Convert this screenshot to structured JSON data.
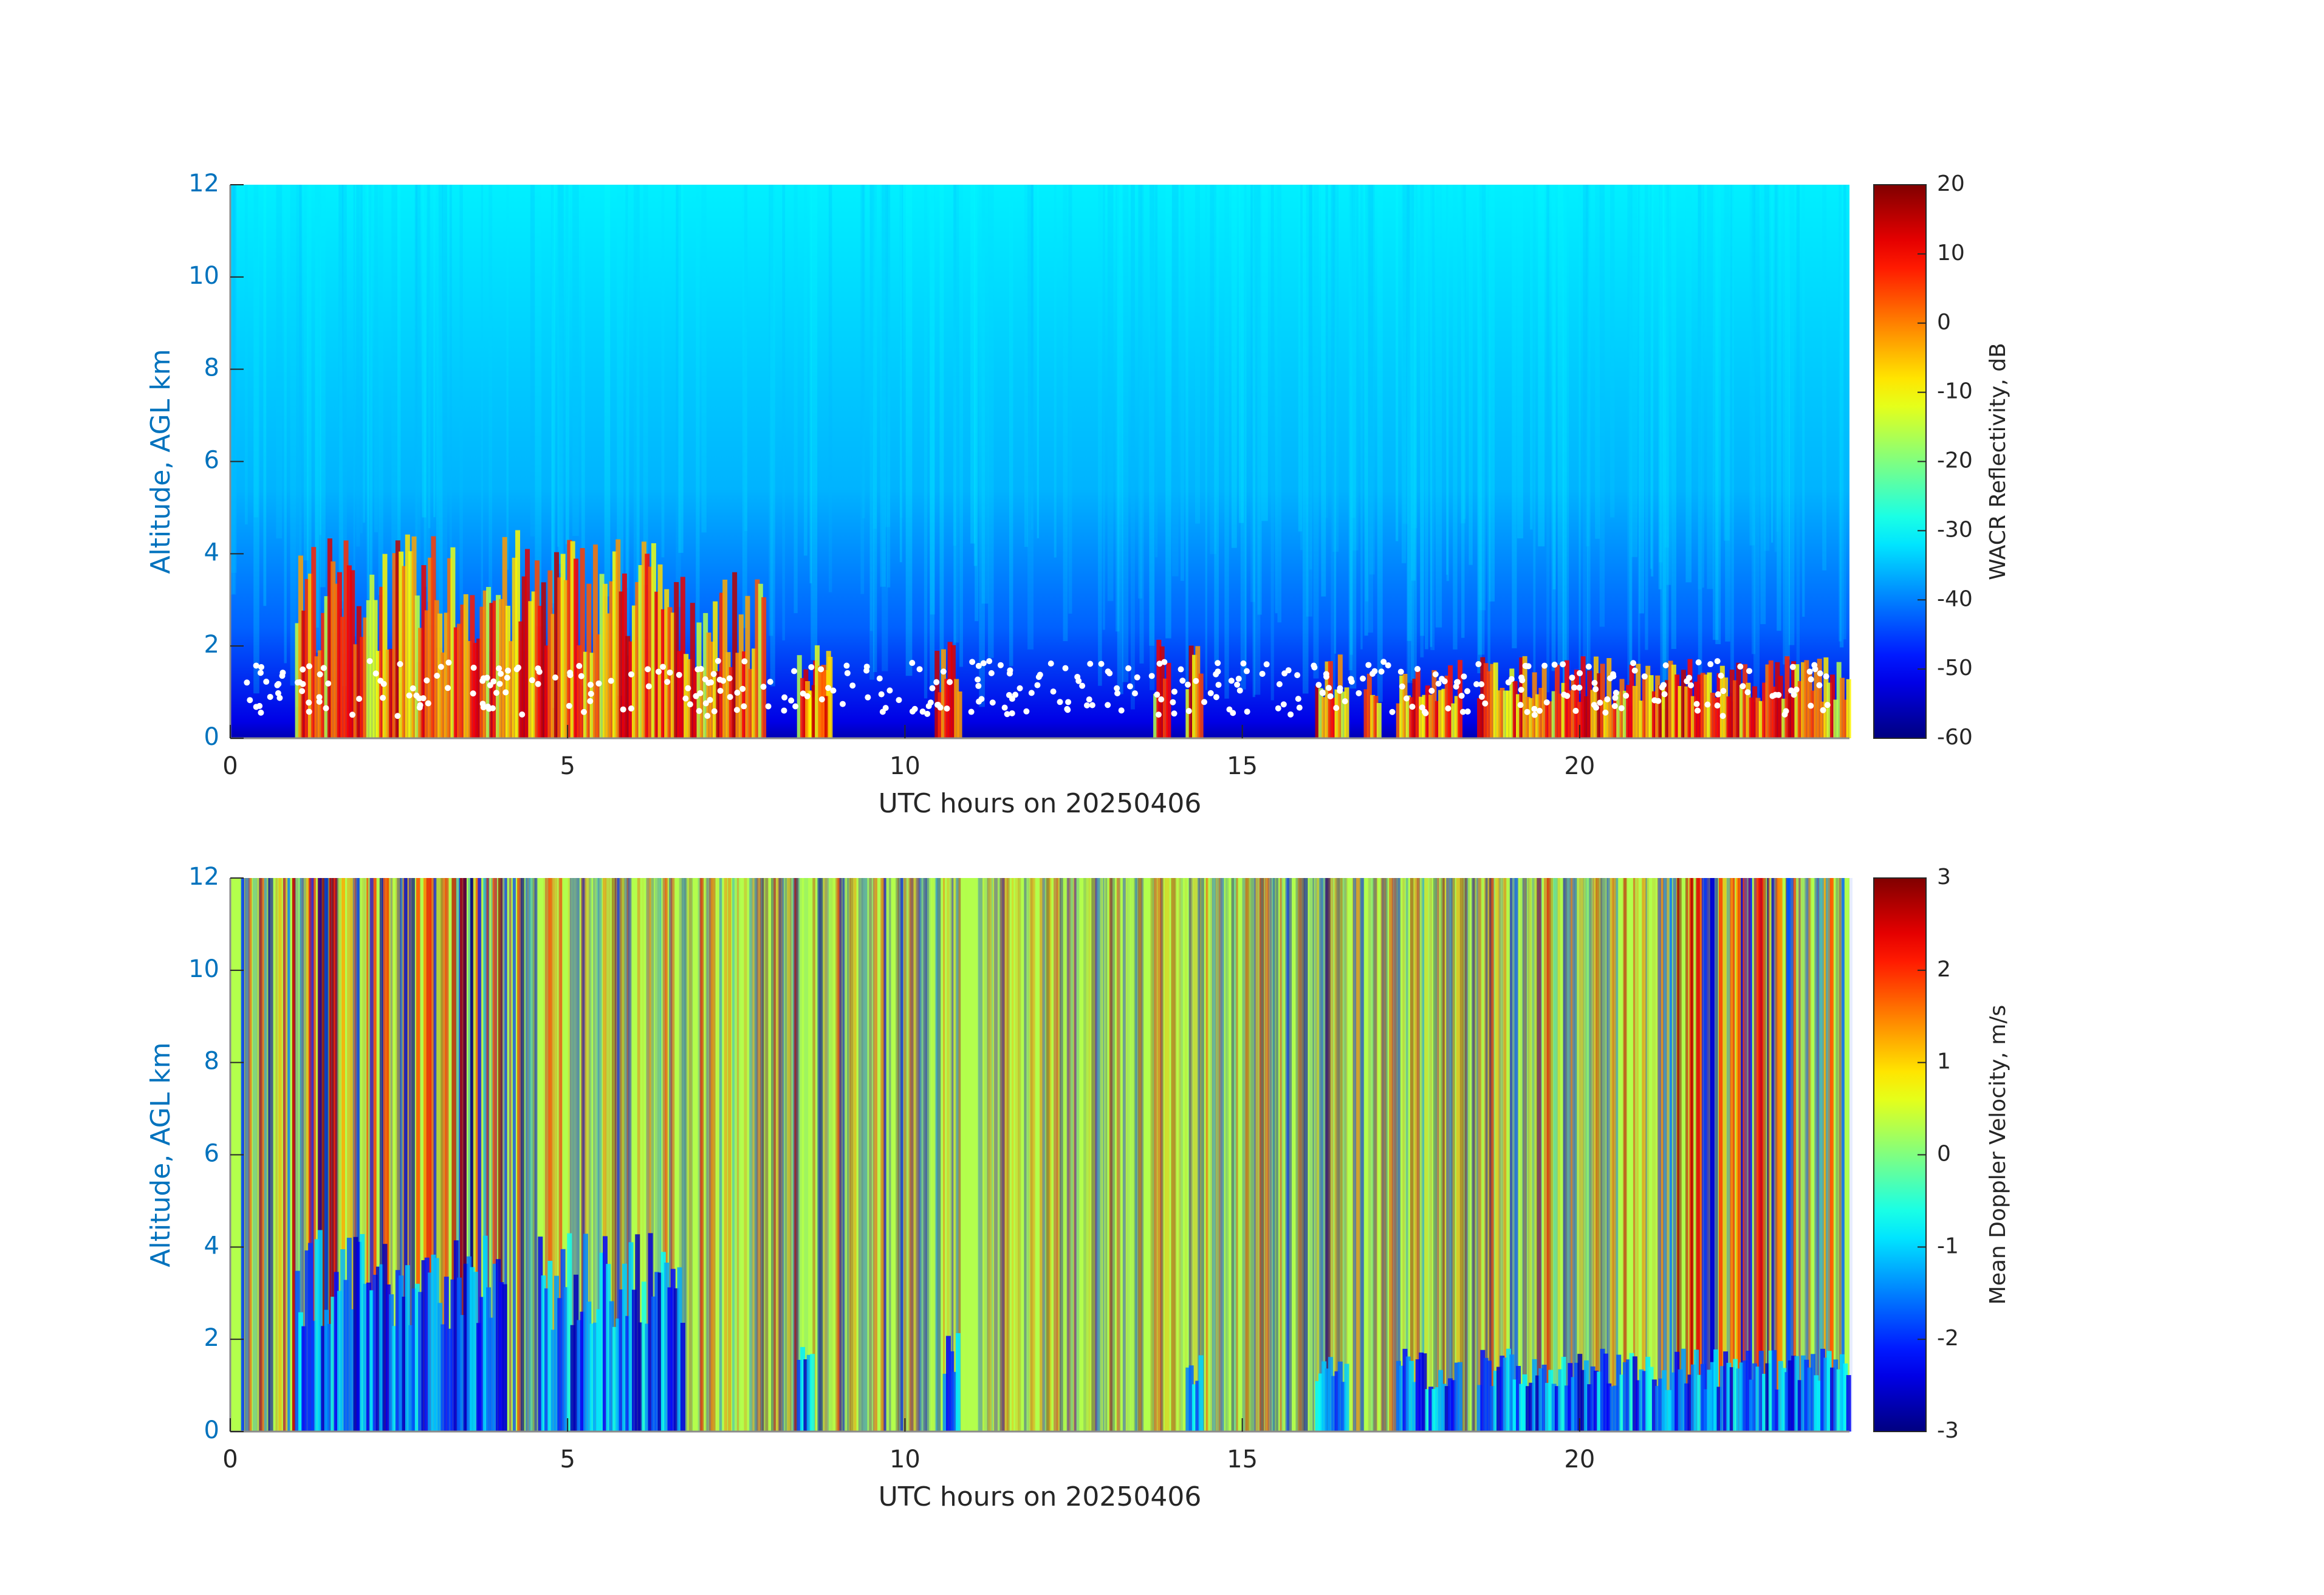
{
  "chart_data": [
    {
      "type": "heatmap",
      "xlabel": "UTC hours on 20250406",
      "ylabel": "Altitude, AGL km",
      "xlim": [
        0,
        24
      ],
      "xticks": [
        0,
        5,
        10,
        15,
        20
      ],
      "ylim": [
        0,
        12
      ],
      "yticks": [
        0,
        2,
        4,
        6,
        8,
        10,
        12
      ],
      "colormap": "jet",
      "colorbar": {
        "label": "WACR Reflectivity, dB",
        "lim": [
          -60,
          20
        ],
        "ticks": [
          -60,
          -50,
          -40,
          -30,
          -20,
          -10,
          0,
          10,
          20
        ]
      }
    },
    {
      "type": "heatmap",
      "xlabel": "UTC hours on 20250406",
      "ylabel": "Altitude, AGL km",
      "xlim": [
        0,
        24
      ],
      "xticks": [
        0,
        5,
        10,
        15,
        20
      ],
      "ylim": [
        0,
        12
      ],
      "yticks": [
        0,
        2,
        4,
        6,
        8,
        10,
        12
      ],
      "colormap": "jet",
      "colorbar": {
        "label": "Mean Doppler Velocity, m/s",
        "lim": [
          -3,
          3
        ],
        "ticks": [
          -3,
          -2,
          -1,
          0,
          1,
          2,
          3
        ]
      }
    }
  ]
}
